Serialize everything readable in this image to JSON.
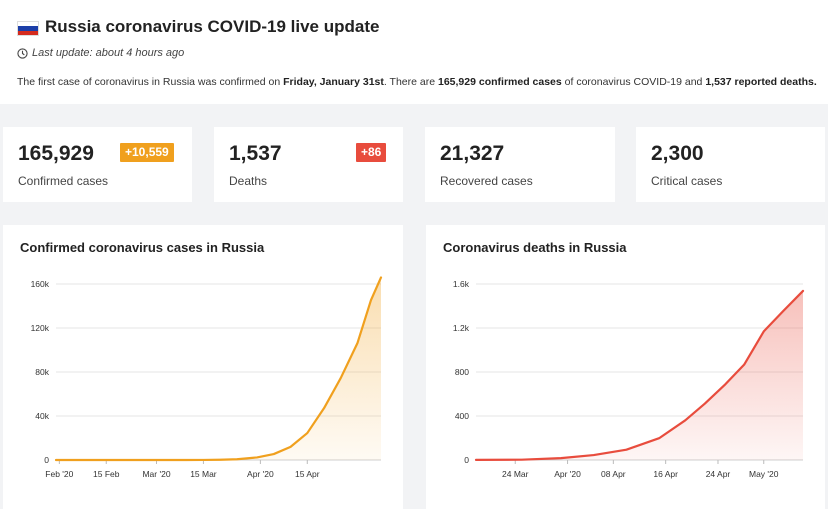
{
  "header": {
    "title": "Russia coronavirus COVID-19 live update",
    "last_update": "Last update: about 4 hours ago",
    "summary": {
      "t1": "The first case of coronavirus in Russia was confirmed on ",
      "first_date": "Friday, January 31st",
      "t2": ". There are ",
      "confirmed": "165,929 confirmed cases",
      "t3": " of coronavirus COVID-19 and ",
      "deaths": "1,537 reported deaths."
    }
  },
  "stats": {
    "confirmed": {
      "value": "165,929",
      "label": "Confirmed cases",
      "badge": "+10,559",
      "badge_color": "#f0a01e"
    },
    "deaths": {
      "value": "1,537",
      "label": "Deaths",
      "badge": "+86",
      "badge_color": "#e84c3d"
    },
    "recovered": {
      "value": "21,327",
      "label": "Recovered cases"
    },
    "critical": {
      "value": "2,300",
      "label": "Critical cases"
    }
  },
  "chart_data": [
    {
      "type": "area",
      "title": "Confirmed coronavirus cases in Russia",
      "color": "#f0a01e",
      "ylim": [
        0,
        160000
      ],
      "yticks": [
        {
          "v": 0,
          "label": "0"
        },
        {
          "v": 40000,
          "label": "40k"
        },
        {
          "v": 80000,
          "label": "80k"
        },
        {
          "v": 120000,
          "label": "120k"
        },
        {
          "v": 160000,
          "label": "160k"
        }
      ],
      "xlim": [
        "2020-01-31",
        "2020-05-07"
      ],
      "xticks": [
        {
          "d": "2020-02-01",
          "label": "Feb '20"
        },
        {
          "d": "2020-02-15",
          "label": "15 Feb"
        },
        {
          "d": "2020-03-01",
          "label": "Mar '20"
        },
        {
          "d": "2020-03-15",
          "label": "15 Mar"
        },
        {
          "d": "2020-04-01",
          "label": "Apr '20"
        },
        {
          "d": "2020-04-15",
          "label": "15 Apr"
        }
      ],
      "points": [
        [
          "2020-01-31",
          2
        ],
        [
          "2020-02-15",
          2
        ],
        [
          "2020-03-01",
          3
        ],
        [
          "2020-03-10",
          10
        ],
        [
          "2020-03-15",
          63
        ],
        [
          "2020-03-20",
          253
        ],
        [
          "2020-03-25",
          658
        ],
        [
          "2020-03-31",
          2337
        ],
        [
          "2020-04-05",
          5389
        ],
        [
          "2020-04-10",
          11917
        ],
        [
          "2020-04-15",
          24490
        ],
        [
          "2020-04-20",
          47121
        ],
        [
          "2020-04-25",
          74588
        ],
        [
          "2020-04-30",
          106498
        ],
        [
          "2020-05-04",
          145268
        ],
        [
          "2020-05-07",
          165929
        ]
      ]
    },
    {
      "type": "area",
      "title": "Coronavirus deaths in Russia",
      "color": "#e84c3d",
      "ylim": [
        0,
        1600
      ],
      "yticks": [
        {
          "v": 0,
          "label": "0"
        },
        {
          "v": 400,
          "label": "400"
        },
        {
          "v": 800,
          "label": "800"
        },
        {
          "v": 1200,
          "label": "1.2k"
        },
        {
          "v": 1600,
          "label": "1.6k"
        }
      ],
      "xlim": [
        "2020-03-18",
        "2020-05-07"
      ],
      "xticks": [
        {
          "d": "2020-03-24",
          "label": "24 Mar"
        },
        {
          "d": "2020-04-01",
          "label": "Apr '20"
        },
        {
          "d": "2020-04-08",
          "label": "08 Apr"
        },
        {
          "d": "2020-04-16",
          "label": "16 Apr"
        },
        {
          "d": "2020-04-24",
          "label": "24 Apr"
        },
        {
          "d": "2020-05-01",
          "label": "May '20"
        }
      ],
      "points": [
        [
          "2020-03-18",
          1
        ],
        [
          "2020-03-25",
          3
        ],
        [
          "2020-03-31",
          17
        ],
        [
          "2020-04-05",
          45
        ],
        [
          "2020-04-10",
          94
        ],
        [
          "2020-04-15",
          198
        ],
        [
          "2020-04-19",
          361
        ],
        [
          "2020-04-22",
          513
        ],
        [
          "2020-04-25",
          681
        ],
        [
          "2020-04-28",
          867
        ],
        [
          "2020-05-01",
          1169
        ],
        [
          "2020-05-04",
          1356
        ],
        [
          "2020-05-07",
          1537
        ]
      ]
    }
  ]
}
